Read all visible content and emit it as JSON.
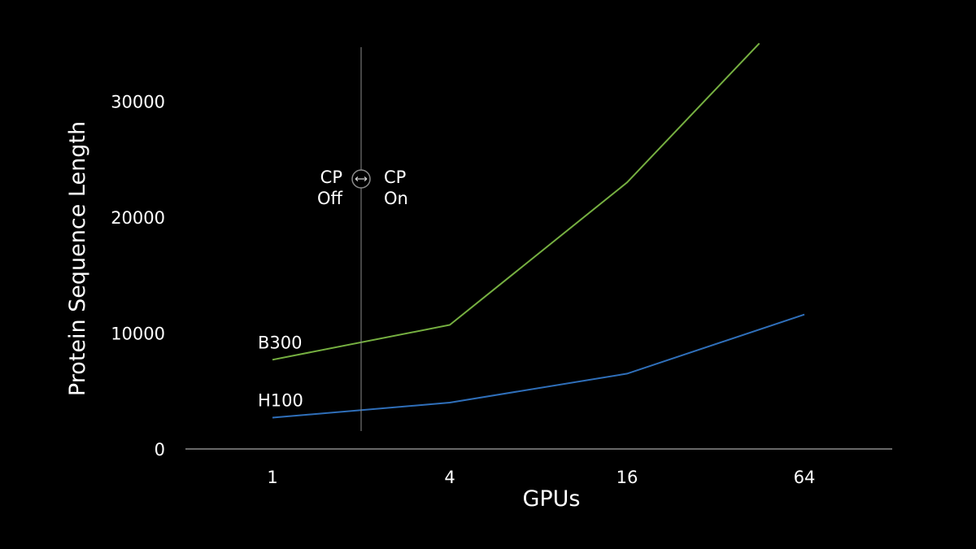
{
  "chart_data": {
    "type": "line",
    "title": "",
    "xlabel": "GPUs",
    "ylabel": "Protein Sequence Length",
    "x_scale": "log2",
    "x_ticks": [
      1,
      4,
      16,
      64
    ],
    "y_ticks": [
      0,
      10000,
      20000,
      30000
    ],
    "ylim": [
      0,
      35000
    ],
    "grid": false,
    "legend": "inline-labels",
    "series": [
      {
        "name": "B300",
        "color": "#76b041",
        "points": [
          [
            1,
            7700
          ],
          [
            4,
            10700
          ],
          [
            16,
            23000
          ],
          [
            45,
            35000
          ]
        ]
      },
      {
        "name": "H100",
        "color": "#2f6fba",
        "points": [
          [
            1,
            2700
          ],
          [
            4,
            4000
          ],
          [
            16,
            6500
          ],
          [
            64,
            11600
          ]
        ]
      }
    ],
    "annotation": {
      "x": 2,
      "left_label": [
        "CP",
        "Off"
      ],
      "right_label": [
        "CP",
        "On"
      ],
      "color": "#8a8a8a"
    }
  }
}
